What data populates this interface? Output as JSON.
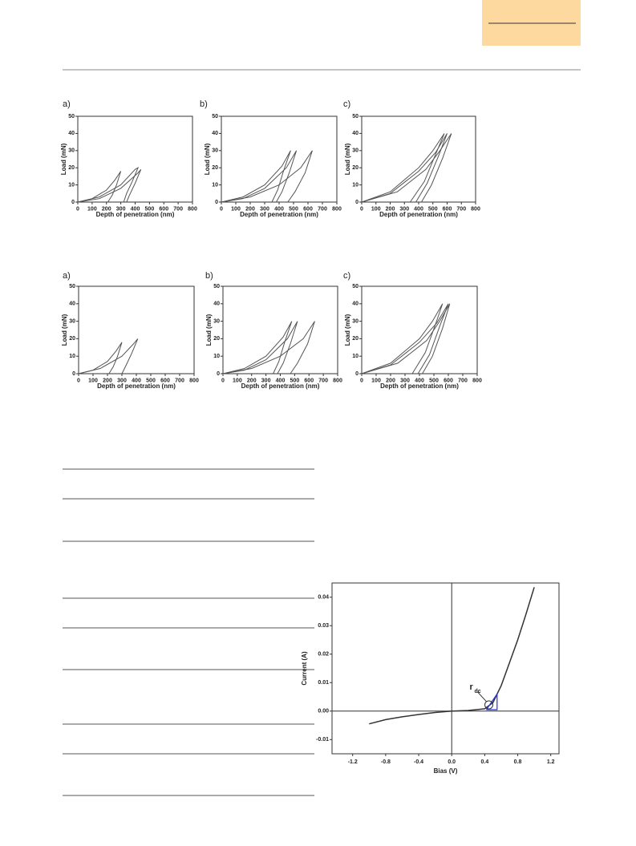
{
  "chart_data": [
    {
      "type": "line",
      "panel_label": "a)",
      "x_label": "Depth of penetration (nm)",
      "y_label": "Load (mN)",
      "xlim": [
        0,
        800
      ],
      "ylim": [
        0,
        50
      ],
      "xticks": [
        0,
        100,
        200,
        300,
        400,
        500,
        600,
        700,
        800
      ],
      "yticks": [
        0,
        10,
        20,
        30,
        40,
        50
      ],
      "series": [
        {
          "color": "#555555",
          "x": [
            0,
            100,
            200,
            260,
            300,
            270,
            240,
            210
          ],
          "values": [
            0,
            2,
            7,
            13,
            18,
            10,
            4,
            0
          ]
        },
        {
          "color": "#555555",
          "x": [
            0,
            150,
            300,
            400,
            420,
            380,
            340,
            320
          ],
          "values": [
            0,
            3,
            10,
            19,
            20,
            12,
            5,
            0
          ]
        },
        {
          "color": "#555555",
          "x": [
            0,
            150,
            300,
            420,
            440,
            400,
            360,
            340
          ],
          "values": [
            0,
            2,
            8,
            17,
            19,
            11,
            4,
            0
          ]
        }
      ]
    },
    {
      "type": "line",
      "panel_label": "b)",
      "x_label": "Depth of penetration (nm)",
      "y_label": "Load (mN)",
      "xlim": [
        0,
        800
      ],
      "ylim": [
        0,
        50
      ],
      "xticks": [
        0,
        100,
        200,
        300,
        400,
        500,
        600,
        700,
        800
      ],
      "yticks": [
        0,
        10,
        20,
        30,
        40,
        50
      ],
      "series": [
        {
          "color": "#555555",
          "x": [
            0,
            150,
            300,
            420,
            480,
            430,
            390,
            350
          ],
          "values": [
            0,
            3,
            10,
            21,
            30,
            18,
            7,
            0
          ]
        },
        {
          "color": "#555555",
          "x": [
            0,
            150,
            300,
            450,
            520,
            470,
            420,
            380
          ],
          "values": [
            0,
            2,
            8,
            20,
            30,
            17,
            6,
            0
          ]
        },
        {
          "color": "#555555",
          "x": [
            0,
            200,
            400,
            550,
            630,
            580,
            510,
            460
          ],
          "values": [
            0,
            3,
            10,
            20,
            30,
            17,
            6,
            0
          ]
        }
      ]
    },
    {
      "type": "line",
      "panel_label": "c)",
      "x_label": "Depth of penetration (nm)",
      "y_label": "Load (mN)",
      "xlim": [
        0,
        800
      ],
      "ylim": [
        0,
        50
      ],
      "xticks": [
        0,
        100,
        200,
        300,
        400,
        500,
        600,
        700,
        800
      ],
      "yticks": [
        0,
        10,
        20,
        30,
        40,
        50
      ],
      "series": [
        {
          "color": "#555555",
          "x": [
            0,
            200,
            400,
            500,
            580,
            520,
            440,
            340
          ],
          "values": [
            0,
            6,
            20,
            30,
            40,
            28,
            12,
            0
          ]
        },
        {
          "color": "#555555",
          "x": [
            0,
            200,
            400,
            520,
            600,
            540,
            460,
            380
          ],
          "values": [
            0,
            5,
            18,
            29,
            40,
            27,
            11,
            0
          ]
        },
        {
          "color": "#555555",
          "x": [
            0,
            250,
            450,
            550,
            630,
            570,
            490,
            420
          ],
          "values": [
            0,
            6,
            19,
            30,
            40,
            26,
            10,
            0
          ]
        }
      ]
    },
    {
      "type": "line",
      "panel_label": "a)",
      "x_label": "Depth of penetration (nm)",
      "y_label": "Load (mN)",
      "xlim": [
        0,
        800
      ],
      "ylim": [
        0,
        50
      ],
      "xticks": [
        0,
        100,
        200,
        300,
        400,
        500,
        600,
        700,
        800
      ],
      "yticks": [
        0,
        10,
        20,
        30,
        40,
        50
      ],
      "series": [
        {
          "color": "#555555",
          "x": [
            0,
            100,
            200,
            260,
            300,
            270,
            240,
            210
          ],
          "values": [
            0,
            2,
            7,
            13,
            18,
            10,
            4,
            0
          ]
        },
        {
          "color": "#555555",
          "x": [
            0,
            150,
            300,
            380,
            410,
            370,
            330,
            300
          ],
          "values": [
            0,
            3,
            10,
            17,
            20,
            12,
            5,
            0
          ]
        }
      ]
    },
    {
      "type": "line",
      "panel_label": "b)",
      "x_label": "Depth of penetration (nm)",
      "y_label": "Load (mN)",
      "xlim": [
        0,
        800
      ],
      "ylim": [
        0,
        50
      ],
      "xticks": [
        0,
        100,
        200,
        300,
        400,
        500,
        600,
        700,
        800
      ],
      "yticks": [
        0,
        10,
        20,
        30,
        40,
        50
      ],
      "series": [
        {
          "color": "#555555",
          "x": [
            0,
            150,
            300,
            420,
            480,
            430,
            390,
            350
          ],
          "values": [
            0,
            3,
            10,
            21,
            30,
            18,
            7,
            0
          ]
        },
        {
          "color": "#555555",
          "x": [
            0,
            150,
            300,
            450,
            520,
            470,
            420,
            380
          ],
          "values": [
            0,
            2,
            8,
            20,
            30,
            17,
            6,
            0
          ]
        },
        {
          "color": "#555555",
          "x": [
            0,
            200,
            400,
            560,
            640,
            590,
            520,
            470
          ],
          "values": [
            0,
            3,
            10,
            20,
            30,
            17,
            6,
            0
          ]
        }
      ]
    },
    {
      "type": "line",
      "panel_label": "c)",
      "x_label": "Depth of penetration (nm)",
      "y_label": "Load (mN)",
      "xlim": [
        0,
        800
      ],
      "ylim": [
        0,
        50
      ],
      "xticks": [
        0,
        100,
        200,
        300,
        400,
        500,
        600,
        700,
        800
      ],
      "yticks": [
        0,
        10,
        20,
        30,
        40,
        50
      ],
      "series": [
        {
          "color": "#555555",
          "x": [
            0,
            200,
            400,
            490,
            560,
            510,
            440,
            350
          ],
          "values": [
            0,
            6,
            20,
            30,
            40,
            28,
            12,
            0
          ]
        },
        {
          "color": "#555555",
          "x": [
            0,
            200,
            400,
            520,
            600,
            540,
            470,
            390
          ],
          "values": [
            0,
            5,
            18,
            29,
            40,
            27,
            11,
            0
          ]
        },
        {
          "color": "#555555",
          "x": [
            0,
            250,
            450,
            540,
            610,
            560,
            490,
            420
          ],
          "values": [
            0,
            6,
            19,
            30,
            40,
            26,
            10,
            0
          ]
        }
      ]
    },
    {
      "type": "line",
      "x_label": "Bias (V)",
      "y_label": "Current (A)",
      "xlim": [
        -1.45,
        1.3
      ],
      "ylim": [
        -0.015,
        0.045
      ],
      "xticks": [
        -1.2,
        -0.8,
        -0.4,
        {
          "value": 0,
          "label": "0.0"
        },
        0.4,
        0.8,
        1.2
      ],
      "yticks": [
        -0.01,
        {
          "value": 0,
          "label": "0.00"
        },
        0.01,
        0.02,
        0.03,
        0.04
      ],
      "annotation": {
        "text": "r",
        "subscript": "dc"
      },
      "series": [
        {
          "color": "#333333",
          "x": [
            -1.0,
            -0.8,
            -0.6,
            -0.4,
            -0.2,
            0,
            0.2,
            0.4,
            0.5,
            0.6,
            0.7,
            0.8,
            0.9,
            1.0
          ],
          "values": [
            -0.0045,
            -0.003,
            -0.002,
            -0.0012,
            -0.0005,
            0,
            0.0002,
            0.0008,
            0.003,
            0.009,
            0.017,
            0.025,
            0.034,
            0.0435
          ]
        }
      ]
    }
  ]
}
